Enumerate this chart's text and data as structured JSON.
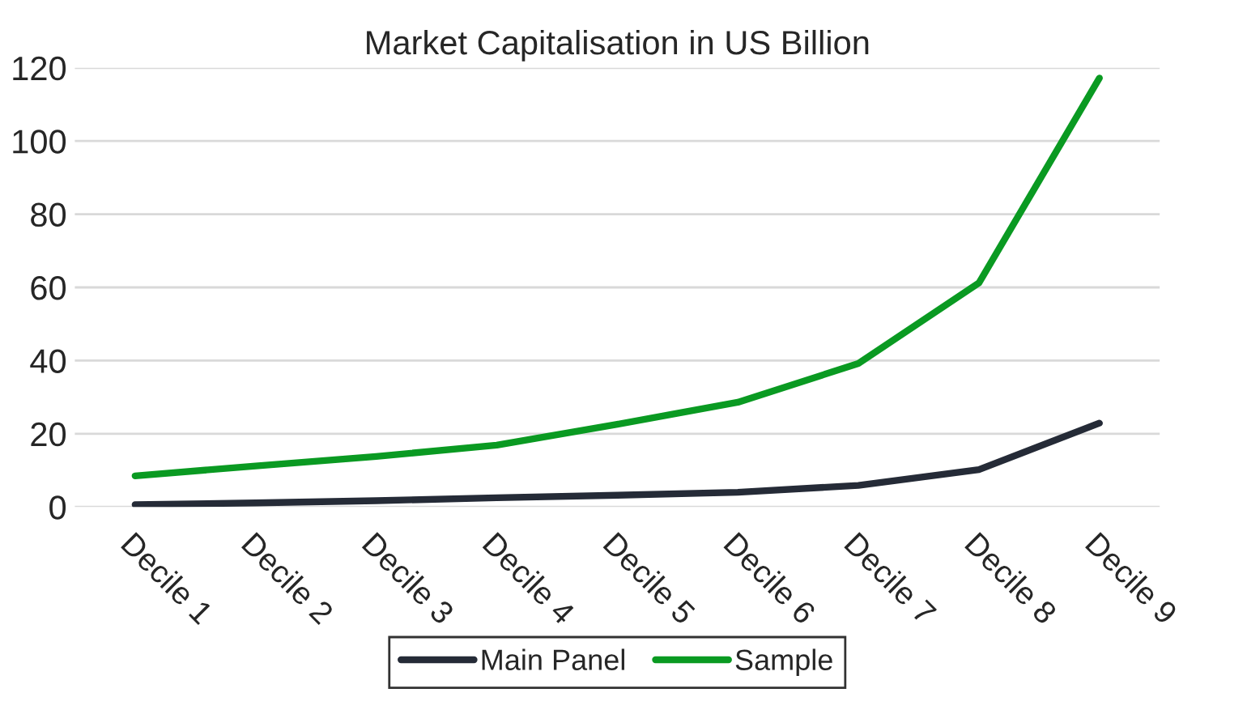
{
  "chart_data": {
    "type": "line",
    "title": "Market Capitalisation in US Billion",
    "categories": [
      "Decile 1",
      "Decile 2",
      "Decile 3",
      "Decile 4",
      "Decile 5",
      "Decile 6",
      "Decile 7",
      "Decile 8",
      "Decile 9"
    ],
    "series": [
      {
        "name": "Main Panel",
        "color": "#252b37",
        "values": [
          0.6,
          1.1,
          1.7,
          2.5,
          3.2,
          4.0,
          5.9,
          10.2,
          22.9
        ]
      },
      {
        "name": "Sample",
        "color": "#0a9a22",
        "values": [
          8.5,
          11.2,
          13.8,
          16.9,
          22.6,
          28.6,
          39.2,
          61.2,
          117.2
        ]
      }
    ],
    "ylim": [
      0,
      120
    ],
    "yticks": [
      0,
      20,
      40,
      60,
      80,
      100,
      120
    ],
    "grid": "y",
    "legend": "bottom",
    "line_style": "solid",
    "marker": "none"
  }
}
